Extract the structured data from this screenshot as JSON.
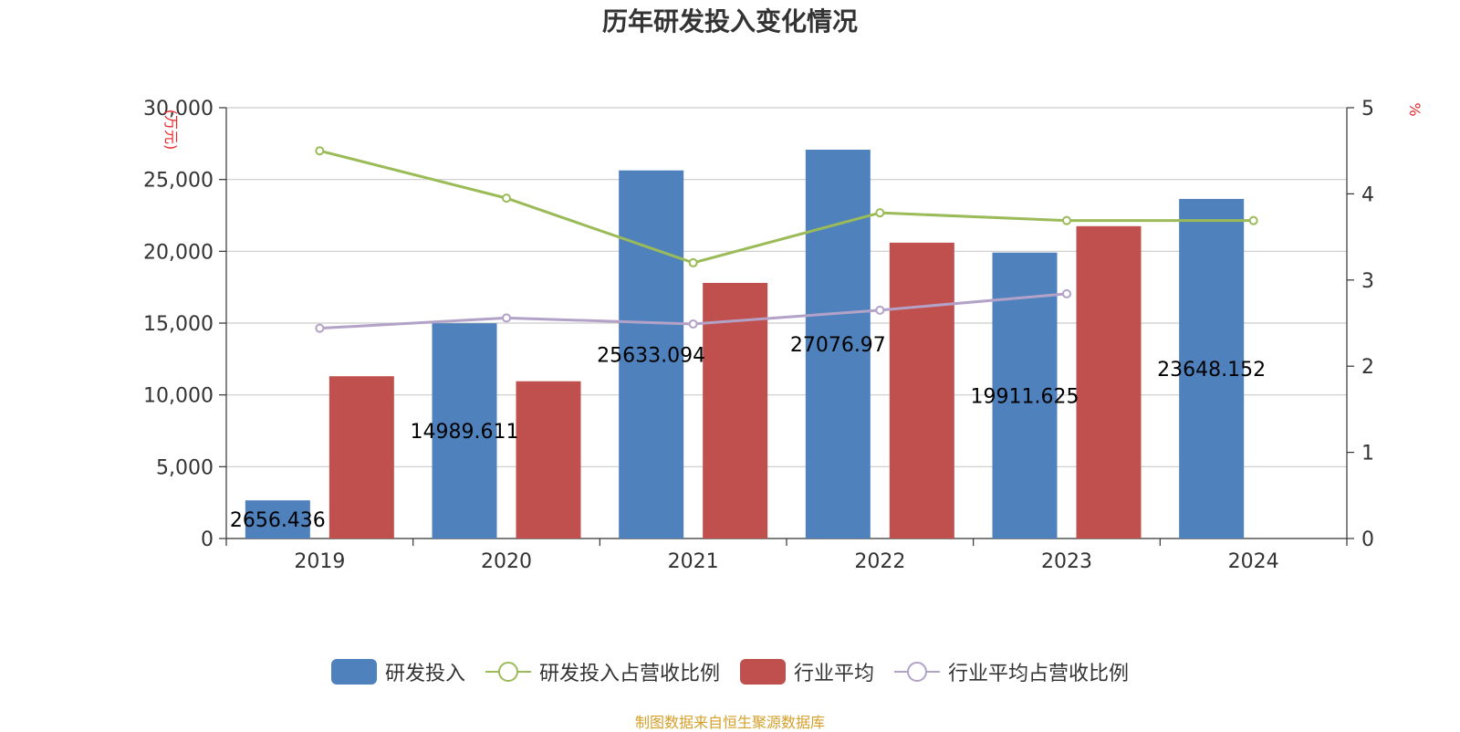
{
  "colors": {
    "rd_bar": "#4F81BD",
    "industry_bar": "#C0504D",
    "rd_ratio_line": "#9BBB59",
    "industry_ratio_line": "#B3A2C7",
    "unit_text": "#E8262B",
    "source_text": "#D4A02A",
    "grid": "#CCCCCC",
    "axis": "#333333"
  },
  "chart_data": {
    "type": "bar",
    "title": "历年研发投入变化情况",
    "categories": [
      "2019",
      "2020",
      "2021",
      "2022",
      "2023",
      "2024"
    ],
    "y_left": {
      "unit_label": "(万元)",
      "ylim": [
        0,
        30000
      ],
      "ticks": [
        "0",
        "5,000",
        "10,000",
        "15,000",
        "20,000",
        "25,000",
        "30,000"
      ]
    },
    "y_right": {
      "unit_label": "%",
      "ylim": [
        0,
        5
      ],
      "ticks": [
        "0",
        "1",
        "2",
        "3",
        "4",
        "5"
      ]
    },
    "grid": true,
    "legend_position": "bottom",
    "series": [
      {
        "name": "研发投入",
        "type": "bar",
        "axis": "left",
        "values": [
          2656.436,
          14989.611,
          25633.094,
          27076.97,
          19911.625,
          23648.152
        ],
        "labels": [
          "2656.436",
          "14989.611",
          "25633.094",
          "27076.97",
          "19911.625",
          "23648.152"
        ]
      },
      {
        "name": "研发投入占营收比例",
        "type": "line",
        "axis": "right",
        "values": [
          4.5,
          3.95,
          3.2,
          3.78,
          3.69,
          3.69
        ]
      },
      {
        "name": "行业平均",
        "type": "bar",
        "axis": "left",
        "values": [
          11300,
          10950,
          17800,
          20600,
          21750,
          null
        ]
      },
      {
        "name": "行业平均占营收比例",
        "type": "line",
        "axis": "right",
        "values": [
          2.44,
          2.56,
          2.49,
          2.65,
          2.84,
          null
        ]
      }
    ]
  },
  "source": "制图数据来自恒生聚源数据库"
}
